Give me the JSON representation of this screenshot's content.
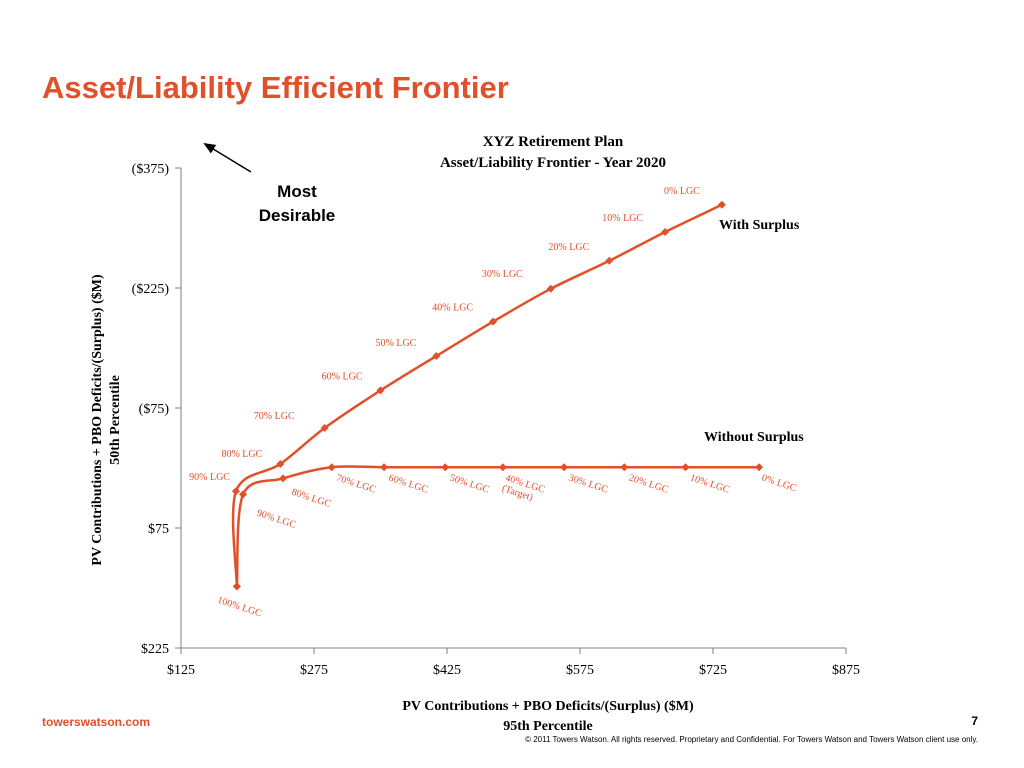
{
  "slide": {
    "title": "Asset/Liability Efficient Frontier",
    "footer_brand": "towerswatson.com",
    "page_number": "7",
    "copyright": "© 2011 Towers Watson. All rights reserved. Proprietary and Confidential. For Towers Watson and Towers Watson client use only.",
    "annotation": [
      "Most",
      "Desirable"
    ]
  },
  "colors": {
    "accent": "#e0502a",
    "axis": "#808080",
    "text": "#000000"
  },
  "chart_data": {
    "type": "line",
    "title": [
      "XYZ Retirement Plan",
      "Asset/Liability Frontier - Year 2020"
    ],
    "xlabel": [
      "PV Contributions + PBO Deficits/(Surplus) ($M)",
      "95th Percentile"
    ],
    "ylabel": [
      "PV Contributions + PBO Deficits/(Surplus) ($M)",
      "50th Percentile"
    ],
    "xlim": [
      125,
      875
    ],
    "ylim": [
      225,
      -375
    ],
    "x_ticks": [
      125,
      275,
      425,
      575,
      725,
      875
    ],
    "x_tick_labels": [
      "$125",
      "$275",
      "$425",
      "$575",
      "$725",
      "$875"
    ],
    "y_ticks": [
      -375,
      -225,
      -75,
      75,
      225
    ],
    "y_tick_labels": [
      "($375)",
      "($225)",
      "($75)",
      "$75",
      "$225"
    ],
    "grid": false,
    "series": [
      {
        "name": "With Surplus",
        "points": [
          {
            "x": 188,
            "y": 148,
            "label": "100% LGC"
          },
          {
            "x": 187,
            "y": 29,
            "label": "90% LGC"
          },
          {
            "x": 237,
            "y": -5,
            "label": "80% LGC"
          },
          {
            "x": 287,
            "y": -50,
            "label": "70% LGC"
          },
          {
            "x": 350,
            "y": -97,
            "label": "60% LGC"
          },
          {
            "x": 413,
            "y": -140,
            "label": "50% LGC"
          },
          {
            "x": 477,
            "y": -183,
            "label": "40% LGC"
          },
          {
            "x": 542,
            "y": -224,
            "label": "30% LGC"
          },
          {
            "x": 608,
            "y": -259,
            "label": "20% LGC"
          },
          {
            "x": 671,
            "y": -295,
            "label": "10% LGC"
          },
          {
            "x": 735,
            "y": -329,
            "label": "0% LGC"
          }
        ]
      },
      {
        "name": "Without Surplus",
        "points": [
          {
            "x": 188,
            "y": 148,
            "label": "100% LGC"
          },
          {
            "x": 195,
            "y": 33,
            "label": "90% LGC"
          },
          {
            "x": 240,
            "y": 13,
            "label": "80% LGC"
          },
          {
            "x": 295,
            "y": -1,
            "label": "70% LGC"
          },
          {
            "x": 354,
            "y": -1,
            "label": "60% LGC"
          },
          {
            "x": 423,
            "y": -1,
            "label": "50% LGC"
          },
          {
            "x": 488,
            "y": -1,
            "label": "40% LGC (Target)"
          },
          {
            "x": 557,
            "y": -1,
            "label": "30% LGC"
          },
          {
            "x": 625,
            "y": -1,
            "label": "20% LGC"
          },
          {
            "x": 694,
            "y": -1,
            "label": "10% LGC"
          },
          {
            "x": 777,
            "y": -1,
            "label": "0% LGC"
          }
        ]
      }
    ]
  }
}
